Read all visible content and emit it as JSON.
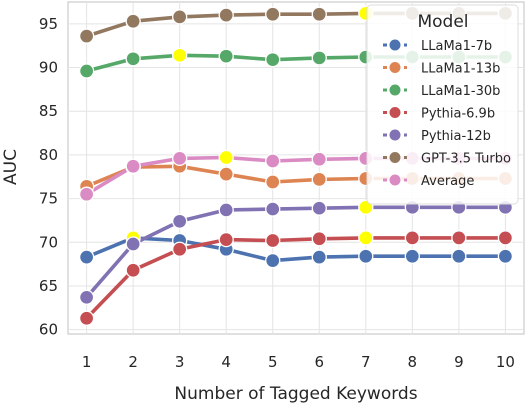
{
  "chart_data": {
    "type": "line",
    "title": "",
    "xlabel": "Number of Tagged Keywords",
    "ylabel": "AUC",
    "x": [
      1,
      2,
      3,
      4,
      5,
      6,
      7,
      8,
      9,
      10
    ],
    "xlim": [
      0.6,
      10.4
    ],
    "ylim": [
      59.5,
      97.5
    ],
    "yticks": [
      60,
      65,
      70,
      75,
      80,
      85,
      90,
      95
    ],
    "grid": true,
    "legend": {
      "title": "Model",
      "placement": "top-right"
    },
    "highlight_color": "#ffff00",
    "series": [
      {
        "name": "LLaMa1-7b",
        "color": "#4c72b0",
        "values": [
          68.3,
          70.5,
          70.2,
          69.2,
          67.9,
          68.3,
          68.4,
          68.4,
          68.4,
          68.4
        ],
        "highlight_index": 1
      },
      {
        "name": "LLaMa1-13b",
        "color": "#dd8452",
        "values": [
          76.4,
          78.6,
          78.7,
          77.8,
          76.9,
          77.2,
          77.3,
          77.3,
          77.3,
          77.3
        ],
        "highlight_index": null
      },
      {
        "name": "LLaMa1-30b",
        "color": "#55a868",
        "values": [
          89.6,
          91.0,
          91.4,
          91.3,
          90.9,
          91.1,
          91.2,
          91.2,
          91.2,
          91.2
        ],
        "highlight_index": 2
      },
      {
        "name": "Pythia-6.9b",
        "color": "#c44e52",
        "values": [
          61.3,
          66.8,
          69.2,
          70.3,
          70.2,
          70.4,
          70.5,
          70.5,
          70.5,
          70.5
        ],
        "highlight_index": 6
      },
      {
        "name": "Pythia-12b",
        "color": "#8172b3",
        "values": [
          63.7,
          69.8,
          72.4,
          73.7,
          73.8,
          73.9,
          74.0,
          74.0,
          74.0,
          74.0
        ],
        "highlight_index": 6
      },
      {
        "name": "GPT-3.5 Turbo",
        "color": "#937860",
        "values": [
          93.6,
          95.3,
          95.8,
          96.0,
          96.1,
          96.1,
          96.2,
          96.2,
          96.2,
          96.2
        ],
        "highlight_index": 6
      },
      {
        "name": "Average",
        "color": "#da8bc3",
        "values": [
          75.5,
          78.7,
          79.6,
          79.7,
          79.3,
          79.5,
          79.6,
          79.6,
          79.6,
          79.6
        ],
        "highlight_index": 3
      }
    ]
  }
}
